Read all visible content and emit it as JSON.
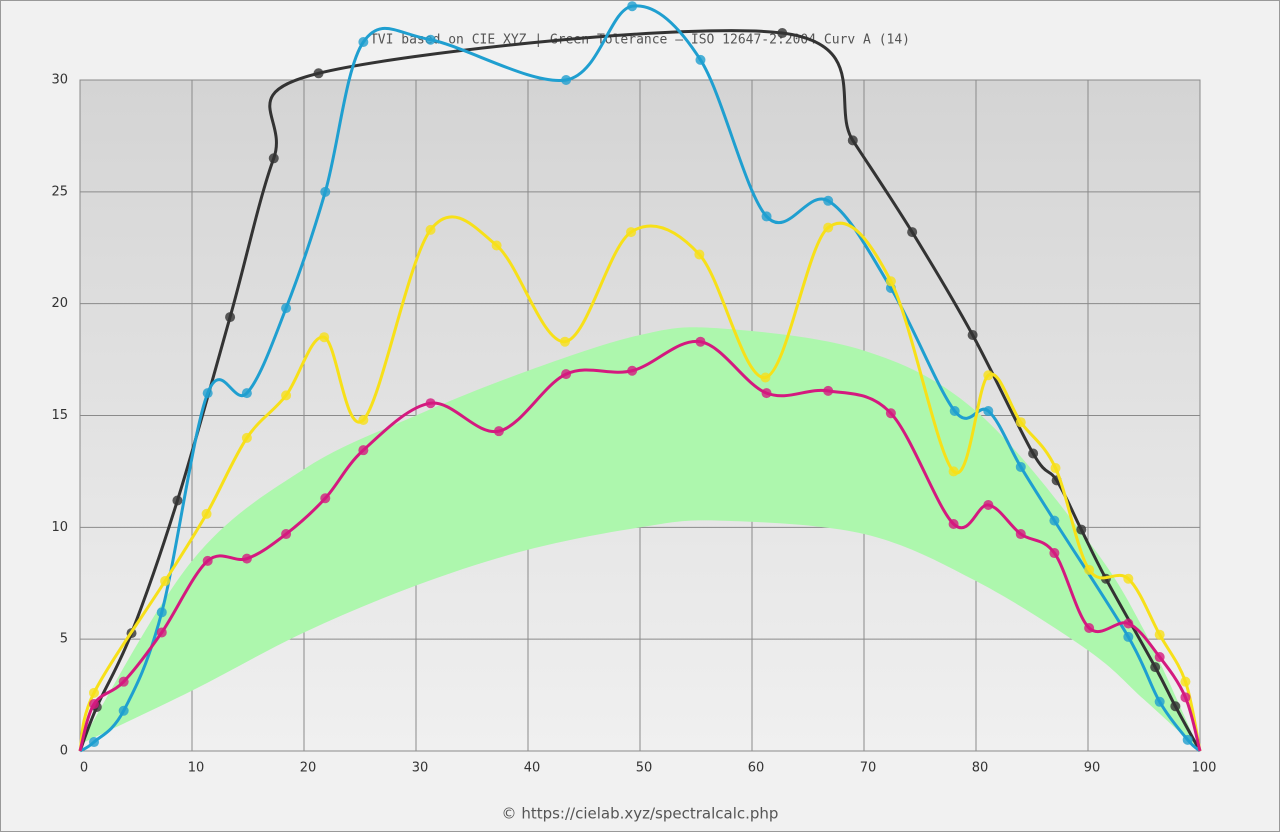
{
  "chart_data": {
    "type": "line",
    "title": "TVI based on CIE XYZ  |  Green Tolerance — ISO 12647-2:2004 Curv A (14)",
    "footer": "© https://cielab.xyz/spectralcalc.php",
    "xlim": [
      0,
      100
    ],
    "xticks": [
      0,
      10,
      20,
      30,
      40,
      50,
      60,
      70,
      80,
      90,
      100
    ],
    "ylim": [
      0,
      30
    ],
    "yticks": [
      0,
      5,
      10,
      15,
      20,
      25,
      30
    ],
    "grid": true,
    "band": {
      "color": "#adf7ad",
      "x": [
        0,
        10,
        20,
        30,
        40,
        50,
        57,
        70,
        80,
        90,
        95,
        100
      ],
      "upper": [
        0.3,
        8.5,
        12.6,
        15.0,
        17.0,
        18.6,
        18.9,
        17.9,
        15.2,
        9.4,
        5.4,
        0
      ],
      "lower": [
        0.3,
        2.7,
        5.3,
        7.4,
        9.0,
        10.0,
        10.3,
        9.7,
        7.6,
        4.5,
        2.3,
        0
      ]
    },
    "series": [
      {
        "color": "#333333",
        "x": [
          1.5,
          4.6,
          8.7,
          13.4,
          17.3,
          21.3,
          62.7,
          69.0,
          74.3,
          79.7,
          85.1,
          87.2,
          89.4,
          91.6,
          96.0,
          97.8
        ],
        "values": [
          1.97,
          5.27,
          11.2,
          19.4,
          26.5,
          30.3,
          32.1,
          27.3,
          23.2,
          18.6,
          13.3,
          12.1,
          9.9,
          7.7,
          3.75,
          2.0
        ]
      },
      {
        "color": "#1f9fd0",
        "x": [
          1.25,
          3.9,
          7.3,
          11.4,
          14.9,
          18.4,
          21.9,
          25.3,
          31.3,
          43.4,
          49.3,
          55.4,
          61.3,
          66.8,
          72.4,
          78.1,
          81.1,
          84.0,
          87.0,
          93.6,
          96.4,
          98.9
        ],
        "values": [
          0.4,
          1.8,
          6.2,
          16.0,
          16.0,
          19.8,
          25.0,
          31.7,
          31.8,
          30.0,
          33.3,
          30.9,
          23.9,
          24.6,
          20.7,
          15.2,
          15.2,
          12.7,
          10.3,
          5.1,
          2.2,
          0.5
        ]
      },
      {
        "color": "#f7e019",
        "x": [
          1.25,
          7.6,
          11.3,
          14.9,
          18.4,
          21.8,
          25.3,
          31.3,
          37.2,
          43.3,
          49.2,
          55.3,
          61.2,
          66.8,
          72.4,
          78.0,
          81.1,
          84.0,
          87.1,
          90.1,
          93.6,
          96.4,
          98.7
        ],
        "values": [
          2.6,
          7.6,
          10.6,
          14.0,
          15.9,
          18.5,
          14.8,
          23.3,
          22.6,
          18.3,
          23.2,
          22.2,
          16.7,
          23.4,
          21.0,
          12.5,
          16.8,
          14.7,
          12.65,
          8.1,
          7.7,
          5.2,
          3.1
        ]
      },
      {
        "color": "#d4197f",
        "x": [
          1.25,
          3.9,
          7.3,
          11.4,
          14.9,
          18.4,
          21.9,
          25.3,
          31.3,
          37.4,
          43.4,
          49.3,
          55.4,
          61.3,
          66.8,
          72.4,
          78.0,
          81.1,
          84.0,
          87.0,
          90.1,
          93.6,
          96.4,
          98.7
        ],
        "values": [
          2.1,
          3.1,
          5.3,
          8.5,
          8.6,
          9.7,
          11.3,
          13.45,
          15.55,
          14.3,
          16.85,
          17.0,
          18.3,
          16.0,
          16.1,
          15.1,
          10.15,
          11.0,
          9.7,
          8.85,
          5.5,
          5.7,
          4.2,
          2.4
        ]
      }
    ]
  }
}
